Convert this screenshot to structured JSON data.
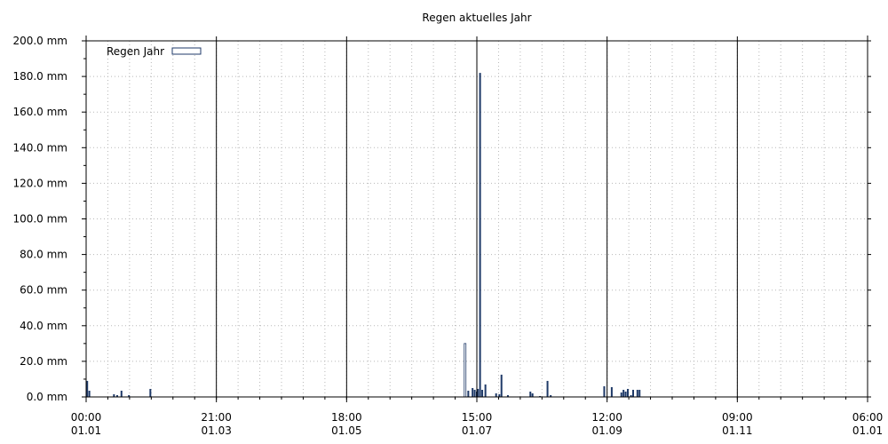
{
  "chart_data": {
    "type": "bar",
    "title": "Regen aktuelles Jahr",
    "xlabel": "",
    "ylabel": "",
    "legend": {
      "label": "Regen Jahr",
      "position": "top-left"
    },
    "colors": {
      "bar": "#1f3a68",
      "legend_fill": "#ffffff",
      "legend_stroke": "#1f3a68",
      "grid": "#b8b8b8"
    },
    "grid": true,
    "ylim": [
      0,
      200
    ],
    "y_ticks": [
      "0.0 mm",
      "20.0 mm",
      "40.0 mm",
      "60.0 mm",
      "80.0 mm",
      "100.0 mm",
      "120.0 mm",
      "140.0 mm",
      "160.0 mm",
      "180.0 mm",
      "200.0 mm"
    ],
    "x_ticks": [
      {
        "time": "00:00",
        "date": "01.01"
      },
      {
        "time": "21:00",
        "date": "01.03"
      },
      {
        "time": "18:00",
        "date": "01.05"
      },
      {
        "time": "15:00",
        "date": "01.07"
      },
      {
        "time": "12:00",
        "date": "01.09"
      },
      {
        "time": "09:00",
        "date": "01.11"
      },
      {
        "time": "06:00",
        "date": "01.01"
      }
    ],
    "x_range_days": [
      0,
      365
    ],
    "series": [
      {
        "name": "Regen Jahr",
        "points": [
          {
            "day": 0.5,
            "value": 9
          },
          {
            "day": 1.5,
            "value": 3.5
          },
          {
            "day": 13,
            "value": 1.5
          },
          {
            "day": 14.5,
            "value": 1
          },
          {
            "day": 16.5,
            "value": 3.5
          },
          {
            "day": 20,
            "value": 1
          },
          {
            "day": 30,
            "value": 4.5
          },
          {
            "day": 177,
            "value": 30
          },
          {
            "day": 178.5,
            "value": 3.5
          },
          {
            "day": 180.5,
            "value": 5
          },
          {
            "day": 181.5,
            "value": 4
          },
          {
            "day": 182.5,
            "value": 3
          },
          {
            "day": 183,
            "value": 4.5
          },
          {
            "day": 184,
            "value": 182
          },
          {
            "day": 185,
            "value": 4
          },
          {
            "day": 186.5,
            "value": 7
          },
          {
            "day": 191.5,
            "value": 2
          },
          {
            "day": 193,
            "value": 1.5
          },
          {
            "day": 194,
            "value": 12.5
          },
          {
            "day": 197,
            "value": 1
          },
          {
            "day": 207.5,
            "value": 3
          },
          {
            "day": 208.5,
            "value": 2
          },
          {
            "day": 212,
            "value": 0.5
          },
          {
            "day": 215.5,
            "value": 9
          },
          {
            "day": 217,
            "value": 1
          },
          {
            "day": 242,
            "value": 6
          },
          {
            "day": 245.5,
            "value": 5.5
          },
          {
            "day": 250,
            "value": 2.5
          },
          {
            "day": 251,
            "value": 4
          },
          {
            "day": 252,
            "value": 3
          },
          {
            "day": 253,
            "value": 4.5
          },
          {
            "day": 254.5,
            "value": 1
          },
          {
            "day": 255.5,
            "value": 4
          },
          {
            "day": 257.5,
            "value": 4
          },
          {
            "day": 258.5,
            "value": 4
          }
        ]
      }
    ]
  }
}
